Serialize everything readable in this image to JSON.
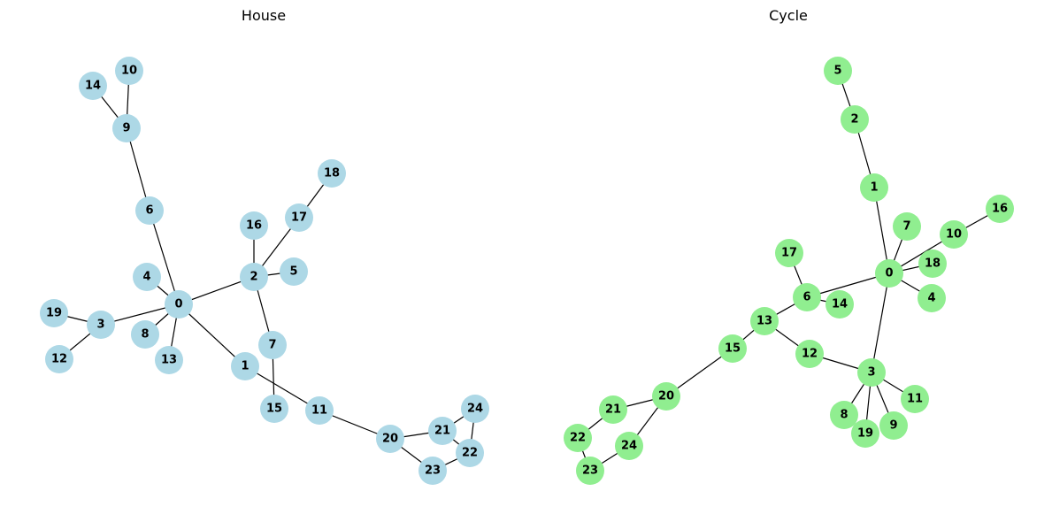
{
  "graphs": [
    {
      "title": "House",
      "node_color": "#add8e6",
      "nodes": [
        "0",
        "1",
        "2",
        "3",
        "4",
        "5",
        "6",
        "7",
        "8",
        "9",
        "10",
        "11",
        "12",
        "13",
        "14",
        "15",
        "16",
        "17",
        "18",
        "19",
        "20",
        "21",
        "22",
        "23",
        "24"
      ],
      "edges": [
        [
          "9",
          "14"
        ],
        [
          "9",
          "10"
        ],
        [
          "9",
          "6"
        ],
        [
          "6",
          "0"
        ],
        [
          "0",
          "4"
        ],
        [
          "0",
          "3"
        ],
        [
          "0",
          "8"
        ],
        [
          "0",
          "13"
        ],
        [
          "0",
          "2"
        ],
        [
          "0",
          "1"
        ],
        [
          "3",
          "19"
        ],
        [
          "3",
          "12"
        ],
        [
          "2",
          "16"
        ],
        [
          "2",
          "17"
        ],
        [
          "17",
          "18"
        ],
        [
          "2",
          "5"
        ],
        [
          "2",
          "7"
        ],
        [
          "7",
          "15"
        ],
        [
          "1",
          "11"
        ],
        [
          "11",
          "20"
        ],
        [
          "20",
          "21"
        ],
        [
          "20",
          "23"
        ],
        [
          "21",
          "24"
        ],
        [
          "21",
          "22"
        ],
        [
          "24",
          "22"
        ],
        [
          "23",
          "22"
        ]
      ]
    },
    {
      "title": "Cycle",
      "node_color": "#90ee90",
      "nodes": [
        "0",
        "1",
        "2",
        "3",
        "4",
        "5",
        "6",
        "7",
        "8",
        "9",
        "10",
        "11",
        "12",
        "13",
        "14",
        "15",
        "16",
        "17",
        "18",
        "19",
        "20",
        "21",
        "22",
        "23",
        "24"
      ],
      "edges": [
        [
          "5",
          "2"
        ],
        [
          "2",
          "1"
        ],
        [
          "1",
          "0"
        ],
        [
          "0",
          "7"
        ],
        [
          "0",
          "10"
        ],
        [
          "10",
          "16"
        ],
        [
          "0",
          "18"
        ],
        [
          "0",
          "4"
        ],
        [
          "0",
          "6"
        ],
        [
          "0",
          "3"
        ],
        [
          "6",
          "17"
        ],
        [
          "6",
          "14"
        ],
        [
          "6",
          "13"
        ],
        [
          "13",
          "15"
        ],
        [
          "13",
          "12"
        ],
        [
          "12",
          "3"
        ],
        [
          "3",
          "8"
        ],
        [
          "3",
          "19"
        ],
        [
          "3",
          "9"
        ],
        [
          "3",
          "11"
        ],
        [
          "15",
          "20"
        ],
        [
          "20",
          "21"
        ],
        [
          "20",
          "24"
        ],
        [
          "21",
          "22"
        ],
        [
          "22",
          "23"
        ],
        [
          "24",
          "23"
        ]
      ]
    }
  ]
}
